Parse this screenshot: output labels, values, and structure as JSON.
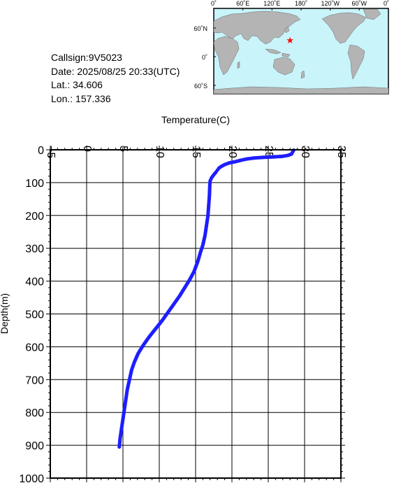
{
  "info": {
    "callsign": "Callsign:9V5023",
    "date": "Date:  2025/08/25 20:33(UTC)",
    "lat": "Lat.:  34.606",
    "lon": "Lon.:  157.336"
  },
  "map": {
    "ocean_color": "#c8f4fa",
    "land_color": "#b4b4b4",
    "marker_color": "#ff0000",
    "marker_icon": "star-icon",
    "station": {
      "lat": 34.606,
      "lon": 157.336
    },
    "lon_ticks": [
      "0˚",
      "60˚E",
      "120˚E",
      "180˚",
      "120˚W",
      "60˚W",
      "0˚"
    ],
    "lat_ticks": [
      "60˚N",
      "0˚",
      "60˚S"
    ]
  },
  "chart_data": {
    "type": "scatter",
    "title": "",
    "xlabel": "Temperature(C)",
    "ylabel": "Depth(m)",
    "xlim": [
      -5,
      35
    ],
    "ylim": [
      0,
      1000
    ],
    "y_inverted": true,
    "x_major_step": 5,
    "y_major_step": 100,
    "x_tick_labels": [
      "-5",
      "0",
      "5",
      "10",
      "15",
      "20",
      "25",
      "30",
      "35"
    ],
    "y_tick_labels": [
      "0",
      "100",
      "200",
      "300",
      "400",
      "500",
      "600",
      "700",
      "800",
      "900",
      "1000"
    ],
    "grid": true,
    "series": [
      {
        "color": "#1e1eff",
        "points": [
          [
            28.5,
            1
          ],
          [
            28.4,
            5
          ],
          [
            28.3,
            9
          ],
          [
            28.2,
            13
          ],
          [
            27.7,
            17
          ],
          [
            26.9,
            20
          ],
          [
            25.3,
            22
          ],
          [
            24.3,
            23
          ],
          [
            23.0,
            25
          ],
          [
            22.0,
            28
          ],
          [
            21.2,
            32
          ],
          [
            20.5,
            36
          ],
          [
            19.6,
            40
          ],
          [
            19.0,
            45
          ],
          [
            18.5,
            51
          ],
          [
            18.2,
            56
          ],
          [
            18.0,
            62
          ],
          [
            17.8,
            68
          ],
          [
            17.5,
            76
          ],
          [
            17.2,
            85
          ],
          [
            17.0,
            95
          ],
          [
            16.95,
            110
          ],
          [
            16.9,
            140
          ],
          [
            16.8,
            170
          ],
          [
            16.7,
            200
          ],
          [
            16.5,
            230
          ],
          [
            16.3,
            260
          ],
          [
            16.0,
            290
          ],
          [
            15.7,
            310
          ],
          [
            15.3,
            340
          ],
          [
            14.8,
            370
          ],
          [
            14.2,
            395
          ],
          [
            13.5,
            420
          ],
          [
            12.8,
            445
          ],
          [
            12.0,
            470
          ],
          [
            11.2,
            495
          ],
          [
            10.4,
            520
          ],
          [
            9.5,
            545
          ],
          [
            8.6,
            570
          ],
          [
            7.8,
            595
          ],
          [
            7.1,
            620
          ],
          [
            6.6,
            645
          ],
          [
            6.2,
            670
          ],
          [
            5.9,
            700
          ],
          [
            5.6,
            730
          ],
          [
            5.4,
            760
          ],
          [
            5.2,
            790
          ],
          [
            5.0,
            820
          ],
          [
            4.8,
            850
          ],
          [
            4.6,
            880
          ],
          [
            4.5,
            905
          ]
        ]
      }
    ]
  }
}
